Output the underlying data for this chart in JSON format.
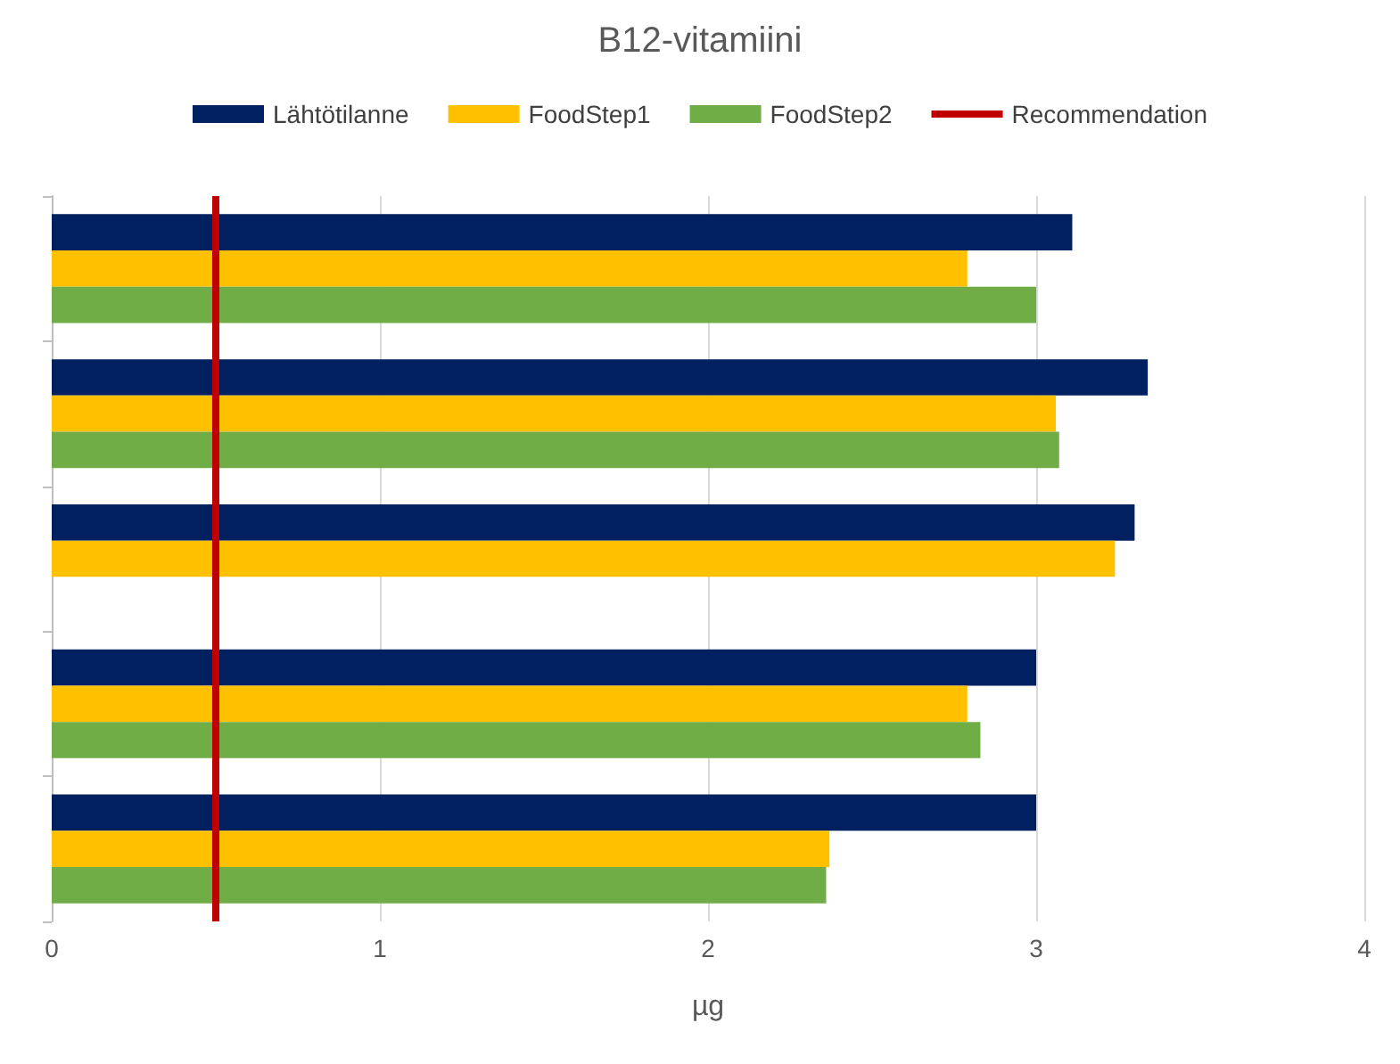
{
  "chart_data": {
    "type": "bar",
    "orientation": "horizontal",
    "title": "B12-vitamiini",
    "xlabel": "µg",
    "categories": [
      null,
      null,
      null,
      null,
      null
    ],
    "series": [
      {
        "name": "Lähtötilanne",
        "color": "#002060",
        "values": [
          3.11,
          3.34,
          3.3,
          3.0,
          3.0
        ]
      },
      {
        "name": "FoodStep1",
        "color": "#ffc000",
        "values": [
          2.79,
          3.06,
          3.24,
          2.79,
          2.37
        ]
      },
      {
        "name": "FoodStep2",
        "color": "#70ad47",
        "values": [
          3.0,
          3.07,
          null,
          2.83,
          2.36
        ]
      }
    ],
    "xlim": [
      0,
      4
    ],
    "xticks": [
      0,
      1,
      2,
      3,
      4
    ],
    "grid": "x",
    "legend": "top",
    "ref_lines": [
      {
        "axis": "x",
        "value": 0.5,
        "label": "Recommendation",
        "color": "#c00000"
      }
    ]
  }
}
